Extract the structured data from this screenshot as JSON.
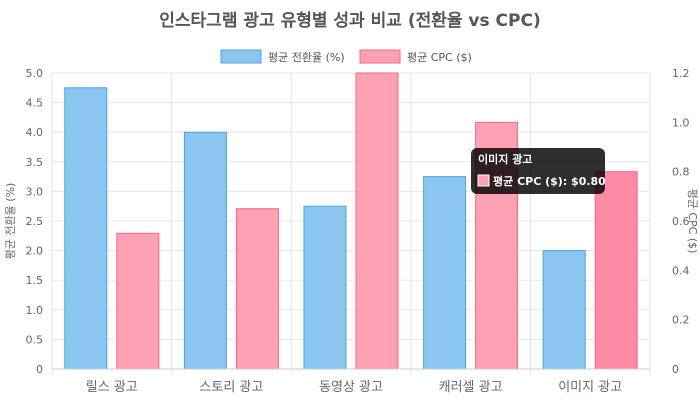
{
  "chart_data": {
    "type": "bar",
    "title": "인스타그램 광고 유형별 성과 비교 (전환율 vs CPC)",
    "categories": [
      "릴스 광고",
      "스토리 광고",
      "동영상 광고",
      "캐러셀 광고",
      "이미지 광고"
    ],
    "series": [
      {
        "name": "평균 전환율 (%)",
        "axis": "left",
        "values": [
          4.75,
          4.0,
          2.75,
          3.25,
          2.0
        ],
        "fill": "#8ac6f0",
        "stroke": "#4aa3df"
      },
      {
        "name": "평균 CPC ($)",
        "axis": "right",
        "values": [
          0.55,
          0.65,
          1.2,
          1.0,
          0.8
        ],
        "fill": "#ffa1b5",
        "stroke": "#ff6384"
      }
    ],
    "y_left": {
      "label": "평균 전환율 (%)",
      "min": 0,
      "max": 5.0,
      "ticks": [
        "0",
        "0.5",
        "1.0",
        "1.5",
        "2.0",
        "2.5",
        "3.0",
        "3.5",
        "4.0",
        "4.5",
        "5.0"
      ]
    },
    "y_right": {
      "label": "평균 CPC ($)",
      "min": 0,
      "max": 1.2,
      "ticks": [
        "0",
        "0.2",
        "0.4",
        "0.6",
        "0.8",
        "1.0",
        "1.2"
      ]
    },
    "grid": true,
    "legend_position": "top",
    "tooltip": {
      "title": "이미지 광고",
      "body": "평균 CPC ($): $0.80",
      "category_index": 4,
      "series_index": 1
    }
  }
}
